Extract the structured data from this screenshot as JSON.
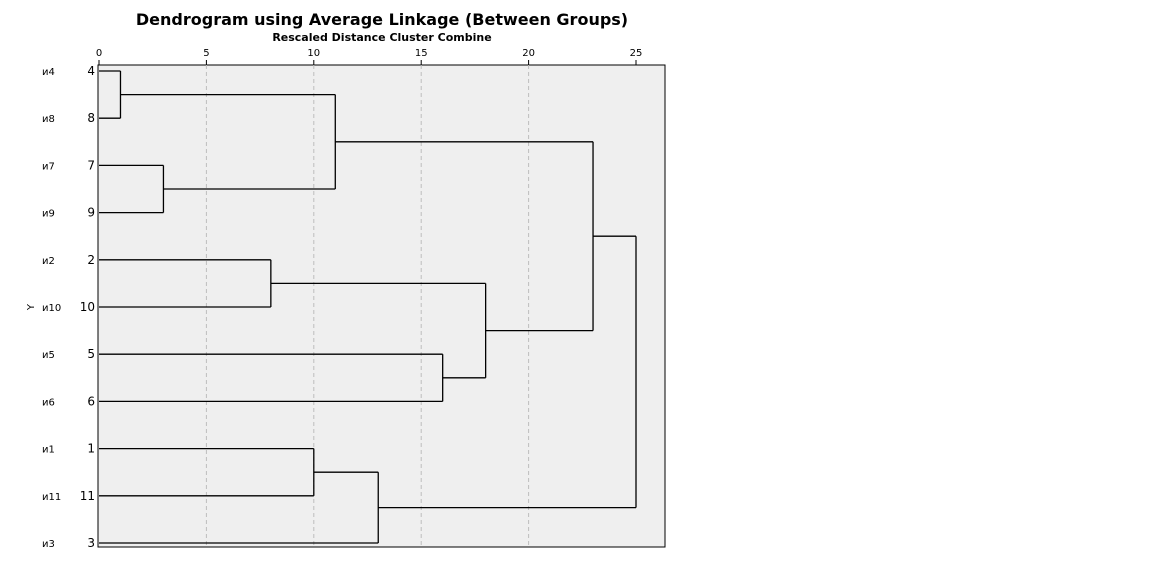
{
  "chart_data": {
    "type": "dendrogram",
    "title": "Dendrogram using Average Linkage (Between Groups)",
    "xlabel": "Rescaled Distance Cluster Combine",
    "ylabel": "Y",
    "xlim": [
      0,
      25
    ],
    "xticks": [
      0,
      5,
      10,
      15,
      20,
      25
    ],
    "grid": true,
    "leaves": [
      {
        "name": "и4",
        "case": "4"
      },
      {
        "name": "и8",
        "case": "8"
      },
      {
        "name": "и7",
        "case": "7"
      },
      {
        "name": "и9",
        "case": "9"
      },
      {
        "name": "и2",
        "case": "2"
      },
      {
        "name": "и10",
        "case": "10"
      },
      {
        "name": "и5",
        "case": "5"
      },
      {
        "name": "и6",
        "case": "6"
      },
      {
        "name": "и1",
        "case": "1"
      },
      {
        "name": "и11",
        "case": "11"
      },
      {
        "name": "и3",
        "case": "3"
      }
    ],
    "merges": [
      {
        "id": "A",
        "children": [
          "4",
          "8"
        ],
        "distance": 1
      },
      {
        "id": "B",
        "children": [
          "7",
          "9"
        ],
        "distance": 3
      },
      {
        "id": "C",
        "children": [
          "2",
          "10"
        ],
        "distance": 8
      },
      {
        "id": "D",
        "children": [
          "1",
          "11"
        ],
        "distance": 10
      },
      {
        "id": "E",
        "children": [
          "A",
          "B"
        ],
        "distance": 11
      },
      {
        "id": "F",
        "children": [
          "D",
          "3"
        ],
        "distance": 13
      },
      {
        "id": "G",
        "children": [
          "5",
          "6"
        ],
        "distance": 16
      },
      {
        "id": "H",
        "children": [
          "C",
          "G"
        ],
        "distance": 18
      },
      {
        "id": "I",
        "children": [
          "E",
          "H"
        ],
        "distance": 23
      },
      {
        "id": "J",
        "children": [
          "I",
          "F"
        ],
        "distance": 25
      }
    ]
  }
}
